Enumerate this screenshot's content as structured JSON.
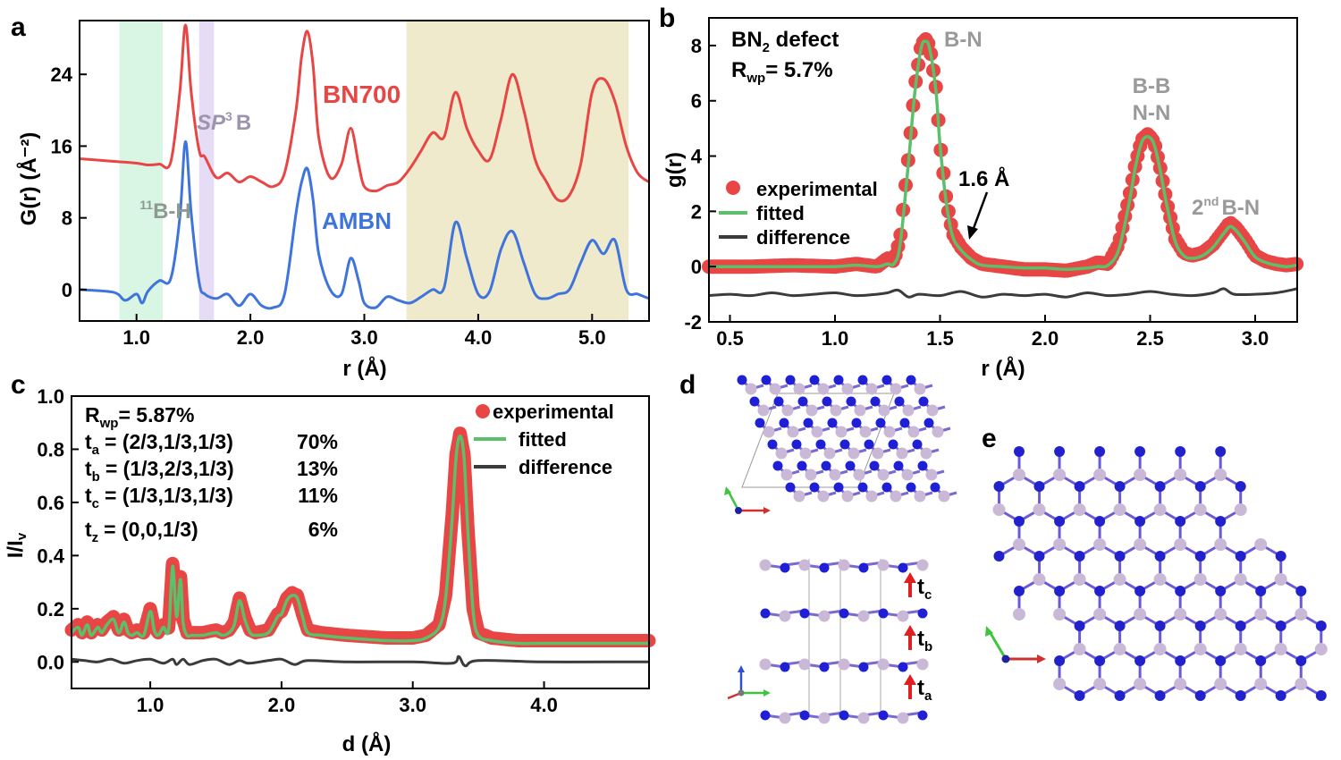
{
  "panels": {
    "a": {
      "letter": "a",
      "xlabel": "r (Å)",
      "ylabel": "G(r) (Å⁻²)",
      "xlim": [
        0.5,
        5.5
      ],
      "ylim": [
        -3.5,
        30
      ],
      "xticks": [
        1.0,
        2.0,
        3.0,
        4.0,
        5.0
      ],
      "xtick_labels": [
        "1.0",
        "2.0",
        "3.0",
        "4.0",
        "5.0"
      ],
      "yticks": [
        0,
        8,
        16,
        24
      ],
      "ytick_labels": [
        "0",
        "8",
        "16",
        "24"
      ],
      "regions": [
        {
          "label_main": "B-H",
          "label_sup": "11",
          "range": [
            0.85,
            1.23
          ],
          "color": "#d9f5e4"
        },
        {
          "label_main": "SP",
          "label_sup": "3",
          "label_tail": "B",
          "range": [
            1.55,
            1.68
          ],
          "color": "#e6dcf6"
        },
        {
          "label_main": "",
          "range": [
            3.37,
            5.32
          ],
          "color": "#efeacb"
        }
      ],
      "series": [
        {
          "name": "BN700",
          "color": "#e84545"
        },
        {
          "name": "AMBN",
          "color": "#3e74dc"
        }
      ]
    },
    "b": {
      "letter": "b",
      "title_line1": "BN",
      "title_sub": "2",
      "title_tail": " defect",
      "rwp_label": "R",
      "rwp_sub": "wp",
      "rwp_value": "= 5.7%",
      "xlabel": "r (Å)",
      "ylabel": "g(r)",
      "xlim": [
        0.4,
        3.2
      ],
      "ylim": [
        -2,
        9
      ],
      "xticks": [
        0.5,
        1.0,
        1.5,
        2.0,
        2.5,
        3.0
      ],
      "xtick_labels": [
        "0.5",
        "1.0",
        "1.5",
        "2.0",
        "2.5",
        "3.0"
      ],
      "yticks": [
        -2,
        0,
        2,
        4,
        6,
        8
      ],
      "ytick_labels": [
        "-2",
        "0",
        "2",
        "4",
        "6",
        "8"
      ],
      "peak_labels": {
        "bn": "B-N",
        "bb": "B-B",
        "nn": "N-N",
        "second_sup": "nd",
        "second_pre": "2",
        "second_tail": "B-N"
      },
      "arrow_label": "1.6 Å",
      "legend": {
        "experimental": "experimental",
        "fitted": "fitted",
        "difference": "difference"
      },
      "colors": {
        "experimental": "#e84545",
        "fitted": "#5cbf6a",
        "difference": "#3b3b3b"
      }
    },
    "c": {
      "letter": "c",
      "rwp_value": "= 5.87%",
      "rows": [
        {
          "t": "a",
          "vec": "= (2/3,1/3,1/3)",
          "pct": "70%"
        },
        {
          "t": "b",
          "vec": "= (1/3,2/3,1/3)",
          "pct": "13%"
        },
        {
          "t": "c",
          "vec": "= (1/3,1/3,1/3)",
          "pct": "11%"
        },
        {
          "t": "z",
          "vec": "= (0,0,1/3)",
          "pct": "6%"
        }
      ],
      "xlabel": "d (Å)",
      "ylabel": "I/I",
      "ylabel_sub": "v",
      "xlim": [
        0.4,
        4.8
      ],
      "ylim": [
        -0.1,
        1.0
      ],
      "xticks": [
        1.0,
        2.0,
        3.0,
        4.0
      ],
      "xtick_labels": [
        "1.0",
        "2.0",
        "3.0",
        "4.0"
      ],
      "yticks": [
        0.0,
        0.2,
        0.4,
        0.6,
        0.8,
        1.0
      ],
      "ytick_labels": [
        "0.0",
        "0.2",
        "0.4",
        "0.6",
        "0.8",
        "1.0"
      ],
      "legend": {
        "experimental": "experimental",
        "fitted": "fitted",
        "difference": "difference"
      }
    },
    "d": {
      "letter": "d",
      "arrows": [
        "c",
        "b",
        "a"
      ]
    },
    "e": {
      "letter": "e"
    }
  },
  "chart_data": [
    {
      "panel": "a",
      "type": "line",
      "xlabel": "r (Å)",
      "ylabel": "G(r) (Å⁻²)",
      "xlim": [
        0.5,
        5.5
      ],
      "series": [
        {
          "name": "BN700",
          "x": [
            0.5,
            0.8,
            1.0,
            1.1,
            1.2,
            1.3,
            1.38,
            1.43,
            1.48,
            1.55,
            1.6,
            1.7,
            1.8,
            1.9,
            2.0,
            2.1,
            2.2,
            2.3,
            2.4,
            2.45,
            2.5,
            2.55,
            2.6,
            2.7,
            2.8,
            2.88,
            2.95,
            3.0,
            3.1,
            3.2,
            3.3,
            3.4,
            3.5,
            3.6,
            3.7,
            3.8,
            3.9,
            4.0,
            4.1,
            4.2,
            4.3,
            4.4,
            4.5,
            4.6,
            4.7,
            4.8,
            4.9,
            5.0,
            5.1,
            5.2,
            5.3,
            5.4,
            5.5
          ],
          "y": [
            14.6,
            14.3,
            14.1,
            13.9,
            14.0,
            14.2,
            22.0,
            29.5,
            22.0,
            15.5,
            14.8,
            12.5,
            13.0,
            12.0,
            12.6,
            12.0,
            11.5,
            13.0,
            20.0,
            26.0,
            28.8,
            25.0,
            17.0,
            12.5,
            14.0,
            18.0,
            14.0,
            11.5,
            11.0,
            11.6,
            12.0,
            13.5,
            15.5,
            17.5,
            17.0,
            22.0,
            18.0,
            15.5,
            14.5,
            19.0,
            24.0,
            20.0,
            14.5,
            12.0,
            10.0,
            10.5,
            14.0,
            22.0,
            23.5,
            21.0,
            16.0,
            13.0,
            12.0
          ]
        },
        {
          "name": "AMBN",
          "x": [
            0.5,
            0.8,
            0.9,
            1.0,
            1.05,
            1.1,
            1.2,
            1.3,
            1.38,
            1.43,
            1.48,
            1.55,
            1.6,
            1.7,
            1.8,
            1.9,
            2.0,
            2.1,
            2.2,
            2.3,
            2.4,
            2.45,
            2.5,
            2.55,
            2.6,
            2.7,
            2.8,
            2.88,
            2.95,
            3.0,
            3.1,
            3.2,
            3.3,
            3.4,
            3.5,
            3.6,
            3.7,
            3.8,
            3.9,
            4.0,
            4.1,
            4.2,
            4.3,
            4.4,
            4.5,
            4.6,
            4.7,
            4.8,
            4.9,
            5.0,
            5.1,
            5.2,
            5.3,
            5.4,
            5.5
          ],
          "y": [
            0.0,
            -0.3,
            -1.2,
            -0.5,
            -1.5,
            -0.2,
            1.0,
            1.2,
            8.0,
            16.5,
            8.5,
            0.8,
            -0.5,
            -1.0,
            -0.5,
            -1.8,
            -0.5,
            -1.8,
            -2.0,
            -0.5,
            8.5,
            12.0,
            13.5,
            10.0,
            4.0,
            0.0,
            -0.5,
            3.5,
            1.0,
            -1.5,
            -2.0,
            -0.8,
            -1.2,
            -1.5,
            -0.8,
            0.0,
            0.2,
            7.5,
            3.5,
            -0.5,
            -0.2,
            4.5,
            6.5,
            3.0,
            -0.5,
            -1.0,
            -0.5,
            0.0,
            3.0,
            5.5,
            4.0,
            5.5,
            0.0,
            -0.5,
            -1.0
          ]
        }
      ]
    },
    {
      "panel": "b",
      "type": "line",
      "xlabel": "r (Å)",
      "ylabel": "g(r)",
      "xlim": [
        0.4,
        3.2
      ],
      "ylim": [
        -2,
        9
      ],
      "series": [
        {
          "name": "experimental",
          "x": [
            0.4,
            0.6,
            0.8,
            1.0,
            1.1,
            1.2,
            1.25,
            1.28,
            1.31,
            1.35,
            1.38,
            1.41,
            1.43,
            1.45,
            1.48,
            1.5,
            1.53,
            1.56,
            1.6,
            1.65,
            1.7,
            1.8,
            1.9,
            2.0,
            2.1,
            2.2,
            2.25,
            2.3,
            2.35,
            2.4,
            2.43,
            2.46,
            2.49,
            2.52,
            2.55,
            2.58,
            2.62,
            2.66,
            2.7,
            2.75,
            2.8,
            2.85,
            2.88,
            2.91,
            2.95,
            3.0,
            3.05,
            3.1,
            3.15,
            3.2
          ],
          "y": [
            0.0,
            0.0,
            0.05,
            0.0,
            0.1,
            0.0,
            0.3,
            0.2,
            1.0,
            4.0,
            6.5,
            8.0,
            8.25,
            8.0,
            6.5,
            4.5,
            2.4,
            1.2,
            0.7,
            0.3,
            0.1,
            0.0,
            -0.1,
            -0.1,
            -0.15,
            0.0,
            0.15,
            0.1,
            0.8,
            2.5,
            3.7,
            4.6,
            4.8,
            4.5,
            3.5,
            2.3,
            1.0,
            0.5,
            0.4,
            0.5,
            0.8,
            1.3,
            1.6,
            1.4,
            1.0,
            0.4,
            0.2,
            0.1,
            0.05,
            0.1
          ]
        },
        {
          "name": "fitted",
          "x": [
            0.4,
            0.6,
            0.8,
            1.0,
            1.1,
            1.2,
            1.25,
            1.28,
            1.31,
            1.35,
            1.38,
            1.41,
            1.43,
            1.45,
            1.48,
            1.5,
            1.53,
            1.56,
            1.6,
            1.65,
            1.7,
            1.8,
            1.9,
            2.0,
            2.1,
            2.2,
            2.25,
            2.3,
            2.35,
            2.4,
            2.43,
            2.46,
            2.49,
            2.52,
            2.55,
            2.58,
            2.62,
            2.66,
            2.7,
            2.75,
            2.8,
            2.85,
            2.88,
            2.91,
            2.95,
            3.0,
            3.05,
            3.1,
            3.15,
            3.2
          ],
          "y": [
            0.0,
            0.0,
            0.0,
            0.0,
            0.05,
            0.0,
            0.1,
            0.1,
            0.8,
            3.8,
            6.3,
            7.9,
            8.15,
            7.9,
            6.4,
            4.4,
            2.3,
            1.1,
            0.6,
            0.25,
            0.05,
            0.0,
            -0.05,
            -0.05,
            -0.1,
            -0.05,
            0.0,
            0.05,
            0.6,
            2.3,
            3.6,
            4.5,
            4.7,
            4.4,
            3.4,
            2.2,
            0.9,
            0.4,
            0.3,
            0.4,
            0.7,
            1.2,
            1.45,
            1.3,
            0.9,
            0.35,
            0.15,
            0.05,
            0.0,
            0.05
          ]
        },
        {
          "name": "difference",
          "x": [
            0.4,
            0.5,
            0.6,
            0.7,
            0.8,
            0.9,
            1.0,
            1.1,
            1.2,
            1.25,
            1.3,
            1.35,
            1.4,
            1.5,
            1.6,
            1.7,
            1.8,
            1.9,
            2.0,
            2.1,
            2.2,
            2.3,
            2.4,
            2.5,
            2.6,
            2.7,
            2.8,
            2.85,
            2.9,
            3.0,
            3.1,
            3.2
          ],
          "y": [
            -1.05,
            -1.0,
            -1.05,
            -0.95,
            -1.05,
            -1.0,
            -0.95,
            -1.05,
            -1.0,
            -0.95,
            -0.85,
            -1.1,
            -1.0,
            -1.05,
            -0.9,
            -1.1,
            -1.0,
            -1.05,
            -1.0,
            -1.1,
            -0.95,
            -1.05,
            -1.0,
            -0.9,
            -1.0,
            -1.05,
            -0.95,
            -0.8,
            -1.0,
            -1.0,
            -0.95,
            -0.8
          ]
        }
      ]
    },
    {
      "panel": "c",
      "type": "line",
      "xlabel": "d (Å)",
      "ylabel": "I/Iv",
      "xlim": [
        0.4,
        4.8
      ],
      "ylim": [
        -0.1,
        1.0
      ],
      "series": [
        {
          "name": "experimental",
          "x": [
            0.4,
            0.45,
            0.48,
            0.52,
            0.55,
            0.6,
            0.63,
            0.67,
            0.72,
            0.76,
            0.8,
            0.83,
            0.86,
            0.9,
            0.95,
            1.0,
            1.03,
            1.06,
            1.1,
            1.14,
            1.17,
            1.2,
            1.23,
            1.25,
            1.28,
            1.32,
            1.4,
            1.5,
            1.55,
            1.6,
            1.64,
            1.68,
            1.72,
            1.76,
            1.8,
            1.9,
            1.97,
            2.0,
            2.04,
            2.08,
            2.12,
            2.16,
            2.2,
            2.3,
            2.5,
            2.8,
            3.0,
            3.1,
            3.2,
            3.25,
            3.3,
            3.33,
            3.36,
            3.39,
            3.42,
            3.46,
            3.5,
            3.6,
            3.8,
            4.0,
            4.5,
            4.8
          ],
          "y": [
            0.12,
            0.14,
            0.11,
            0.15,
            0.11,
            0.14,
            0.12,
            0.15,
            0.17,
            0.12,
            0.16,
            0.12,
            0.11,
            0.12,
            0.11,
            0.2,
            0.13,
            0.11,
            0.14,
            0.13,
            0.37,
            0.18,
            0.32,
            0.16,
            0.11,
            0.11,
            0.11,
            0.12,
            0.11,
            0.12,
            0.15,
            0.24,
            0.17,
            0.12,
            0.11,
            0.12,
            0.18,
            0.19,
            0.24,
            0.26,
            0.25,
            0.18,
            0.12,
            0.11,
            0.1,
            0.09,
            0.09,
            0.1,
            0.14,
            0.25,
            0.55,
            0.78,
            0.86,
            0.78,
            0.5,
            0.2,
            0.11,
            0.09,
            0.08,
            0.08,
            0.08,
            0.08
          ]
        },
        {
          "name": "fitted",
          "x": [
            0.4,
            0.45,
            0.48,
            0.52,
            0.55,
            0.6,
            0.63,
            0.67,
            0.72,
            0.76,
            0.8,
            0.83,
            0.86,
            0.9,
            0.95,
            1.0,
            1.03,
            1.06,
            1.1,
            1.14,
            1.17,
            1.2,
            1.23,
            1.25,
            1.28,
            1.32,
            1.4,
            1.5,
            1.55,
            1.6,
            1.64,
            1.68,
            1.72,
            1.76,
            1.8,
            1.9,
            1.97,
            2.0,
            2.04,
            2.08,
            2.12,
            2.16,
            2.2,
            2.3,
            2.5,
            2.8,
            3.0,
            3.1,
            3.2,
            3.25,
            3.3,
            3.33,
            3.36,
            3.39,
            3.42,
            3.46,
            3.5,
            3.6,
            3.8,
            4.0,
            4.5,
            4.8
          ],
          "y": [
            0.11,
            0.13,
            0.1,
            0.14,
            0.1,
            0.13,
            0.11,
            0.14,
            0.16,
            0.11,
            0.15,
            0.11,
            0.1,
            0.11,
            0.1,
            0.19,
            0.12,
            0.1,
            0.13,
            0.12,
            0.36,
            0.17,
            0.31,
            0.15,
            0.1,
            0.1,
            0.1,
            0.11,
            0.1,
            0.11,
            0.14,
            0.23,
            0.16,
            0.11,
            0.1,
            0.11,
            0.17,
            0.18,
            0.23,
            0.25,
            0.24,
            0.17,
            0.11,
            0.1,
            0.09,
            0.08,
            0.08,
            0.09,
            0.13,
            0.24,
            0.54,
            0.77,
            0.85,
            0.77,
            0.49,
            0.19,
            0.1,
            0.08,
            0.07,
            0.07,
            0.07,
            0.07
          ]
        },
        {
          "name": "difference",
          "x": [
            0.4,
            0.5,
            0.6,
            0.7,
            0.8,
            0.9,
            1.0,
            1.1,
            1.17,
            1.2,
            1.25,
            1.3,
            1.4,
            1.5,
            1.6,
            1.68,
            1.75,
            1.9,
            2.0,
            2.1,
            2.2,
            2.5,
            3.0,
            3.3,
            3.35,
            3.4,
            3.5,
            4.0,
            4.5,
            4.8
          ],
          "y": [
            0.01,
            0.005,
            0.0,
            0.01,
            -0.005,
            0.005,
            0.01,
            -0.005,
            0.01,
            -0.01,
            0.01,
            -0.01,
            0.005,
            0.01,
            -0.01,
            0.005,
            -0.005,
            0.005,
            0.01,
            -0.01,
            0.005,
            0.0,
            0.0,
            -0.005,
            0.02,
            -0.015,
            0.005,
            0.0,
            0.0,
            0.0
          ]
        }
      ]
    }
  ]
}
